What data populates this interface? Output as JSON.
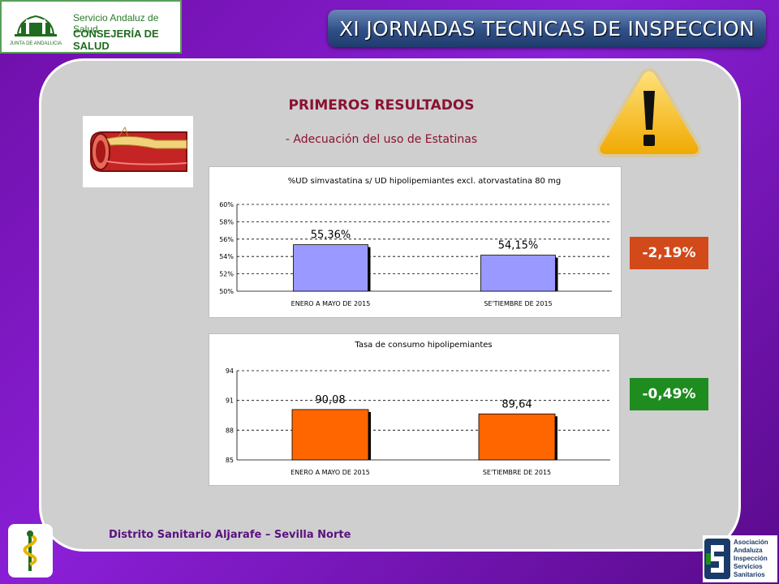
{
  "header": {
    "logo_line1": "Servicio Andaluz de Salud",
    "logo_line2": "CONSEJERÍA DE SALUD",
    "emblem_text": "JUNTA DE ANDALUCIA",
    "banner_title": "XI JORNADAS TECNICAS DE INSPECCION"
  },
  "main": {
    "heading": "PRIMEROS RESULTADOS",
    "subheading": "- Adecuación del uso de Estatinas"
  },
  "badges": [
    {
      "label": "-2,19%",
      "color": "#d2491a"
    },
    {
      "label": "-0,49%",
      "color": "#1f8c1f"
    }
  ],
  "footer": {
    "district": "Distrito Sanitario Aljarafe – Sevilla Norte",
    "assoc_lines": [
      "Asociación",
      "Andaluza",
      "Inspección",
      "Servicios",
      "Sanitarios"
    ]
  },
  "colors": {
    "accent": "#8a1232",
    "bar1": "#9999ff",
    "bar2": "#ff6600",
    "warning": "#f4b400"
  },
  "chart_data": [
    {
      "type": "bar",
      "title": "%UD simvastatina s/ UD hipolipemiantes excl. atorvastatina 80 mg",
      "categories": [
        "ENERO A MAYO DE 2015",
        "SE'TIEMBRE DE 2015"
      ],
      "values": [
        55.36,
        54.15
      ],
      "value_labels": [
        "55,36%",
        "54,15%"
      ],
      "ylim": [
        50,
        60
      ],
      "yticks": [
        "50%",
        "52%",
        "54%",
        "56%",
        "58%",
        "60%"
      ],
      "ytick_values": [
        50,
        52,
        54,
        56,
        58,
        60
      ],
      "grid": true
    },
    {
      "type": "bar",
      "title": "Tasa de consumo hipolipemiantes",
      "categories": [
        "ENERO A MAYO DE 2015",
        "SE'TIEMBRE DE 2015"
      ],
      "values": [
        90.08,
        89.64
      ],
      "value_labels": [
        "90,08",
        "89,64"
      ],
      "ylim": [
        85,
        94
      ],
      "yticks": [
        "85",
        "88",
        "91",
        "94"
      ],
      "ytick_values": [
        85,
        88,
        91,
        94
      ],
      "grid": true
    }
  ]
}
